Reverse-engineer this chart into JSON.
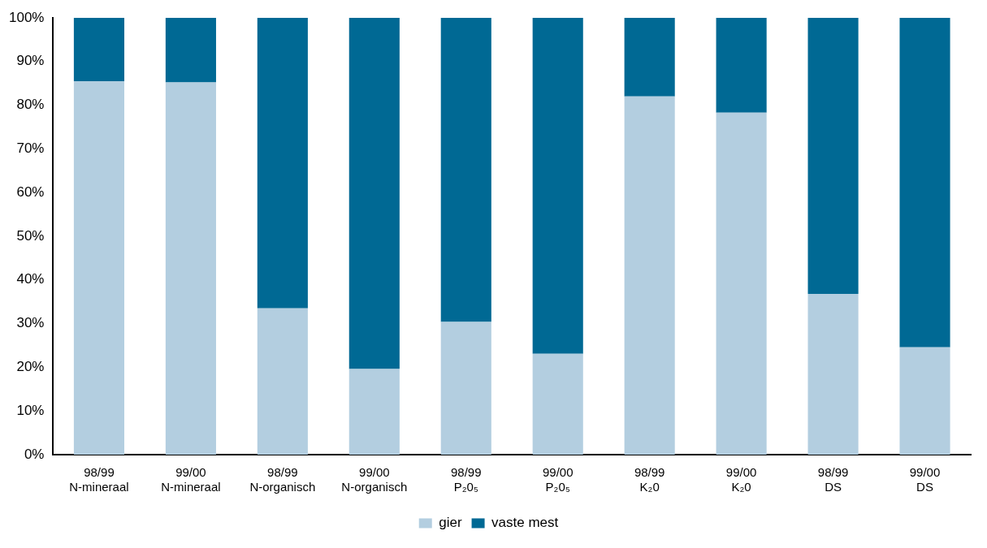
{
  "chart_data": {
    "type": "bar",
    "stacked": true,
    "categories": [
      "98/99\nN-mineraal",
      "99/00\nN-mineraal",
      "98/99\nN-organisch",
      "99/00\nN-organisch",
      "98/99\nP₂0₅",
      "99/00\nP₂0₅",
      "98/99\nK₂0",
      "99/00\nK₂0",
      "98/99\nDS",
      "99/00\nDS"
    ],
    "series": [
      {
        "name": "gier",
        "color": "#b3cee0",
        "values": [
          85.5,
          85.2,
          33.5,
          19.6,
          30.4,
          23.1,
          82.0,
          78.3,
          36.8,
          24.6
        ]
      },
      {
        "name": "vaste mest",
        "color": "#006994",
        "values": [
          14.5,
          14.8,
          66.5,
          80.4,
          69.6,
          76.9,
          18.0,
          21.7,
          63.2,
          75.4
        ]
      }
    ],
    "ylim": [
      0,
      100
    ],
    "yticks": [
      {
        "value": 0,
        "label": "0%"
      },
      {
        "value": 10,
        "label": "10%"
      },
      {
        "value": 20,
        "label": "20%"
      },
      {
        "value": 30,
        "label": "30%"
      },
      {
        "value": 40,
        "label": "40%"
      },
      {
        "value": 50,
        "label": "50%"
      },
      {
        "value": 60,
        "label": "60%"
      },
      {
        "value": 70,
        "label": "70%"
      },
      {
        "value": 80,
        "label": "80%"
      },
      {
        "value": 90,
        "label": "90%"
      },
      {
        "value": 100,
        "label": "100%"
      }
    ],
    "grid": false,
    "legend": "bottom"
  }
}
